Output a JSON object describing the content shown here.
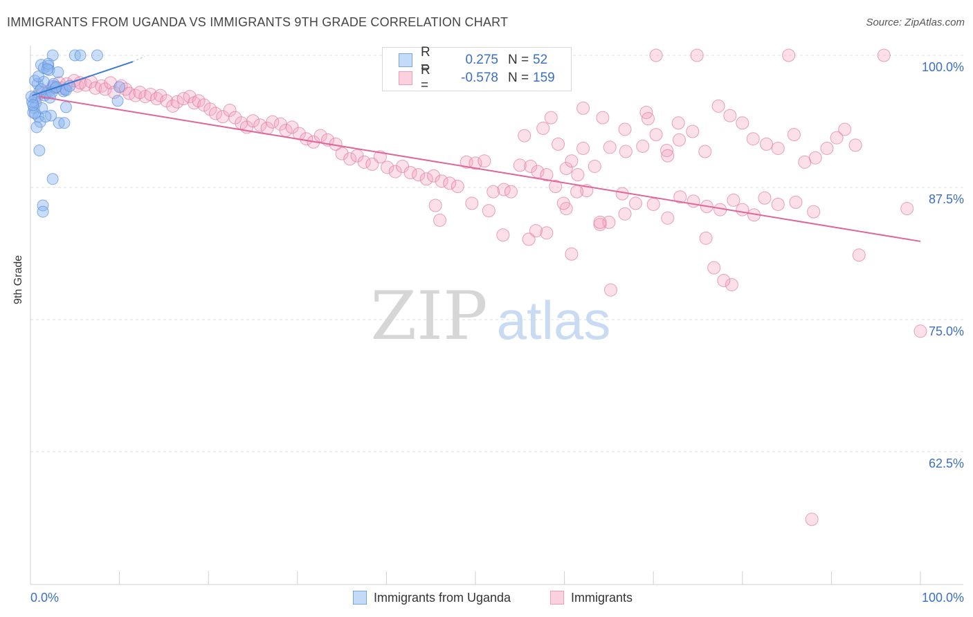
{
  "title": "IMMIGRANTS FROM UGANDA VS IMMIGRANTS 9TH GRADE CORRELATION CHART",
  "source": "Source: ZipAtlas.com",
  "watermark": {
    "zip": "ZIP",
    "atlas": "atlas"
  },
  "stats": [
    {
      "r_label": "R =",
      "r_value": "0.275",
      "n_label": "N =",
      "n_value": "52",
      "color": "#8ab4ef"
    },
    {
      "r_label": "R =",
      "r_value": "-0.578",
      "n_label": "N =",
      "n_value": "159",
      "color": "#f4a3bf"
    }
  ],
  "legend": [
    {
      "label": "Immigrants from Uganda",
      "color": "#8ab4ef"
    },
    {
      "label": "Immigrants",
      "color": "#f4a3bf"
    }
  ],
  "chart_data": {
    "type": "scatter",
    "title": "IMMIGRANTS FROM UGANDA VS IMMIGRANTS 9TH GRADE CORRELATION CHART",
    "xlabel": "",
    "ylabel": "9th Grade",
    "xlim": [
      0,
      100
    ],
    "ylim": [
      50,
      102
    ],
    "x_tick_labels": [
      "0.0%",
      "100.0%"
    ],
    "y_ticks": [
      62.5,
      75.0,
      87.5,
      100.0
    ],
    "y_tick_labels": [
      "62.5%",
      "75.0%",
      "87.5%",
      "100.0%"
    ],
    "grid": true,
    "series": [
      {
        "name": "Immigrants from Uganda",
        "color": "#8ab4ef",
        "stroke": "#5a8fd8",
        "trend": {
          "x": [
            0.2,
            11.5
          ],
          "y": [
            96.2,
            99.4
          ],
          "color": "#3a78d0"
        },
        "trend_dashed": {
          "x": [
            11.5,
            11.9
          ],
          "y": [
            99.4,
            99.5
          ]
        },
        "points": [
          [
            0.5,
            96.0
          ],
          [
            1.2,
            99.1
          ],
          [
            1.5,
            98.8
          ],
          [
            2.0,
            99.0
          ],
          [
            2.1,
            98.6
          ],
          [
            2.5,
            97.1
          ],
          [
            0.8,
            97.3
          ],
          [
            1.0,
            96.6
          ],
          [
            1.6,
            96.2
          ],
          [
            1.8,
            96.4
          ],
          [
            2.2,
            96.0
          ],
          [
            0.6,
            95.5
          ],
          [
            0.4,
            95.0
          ],
          [
            0.3,
            94.6
          ],
          [
            0.9,
            94.2
          ],
          [
            1.1,
            93.7
          ],
          [
            0.7,
            93.2
          ],
          [
            1.3,
            95.0
          ],
          [
            2.3,
            94.3
          ],
          [
            3.7,
            96.6
          ],
          [
            3.9,
            96.8
          ],
          [
            2.8,
            96.9
          ],
          [
            4.0,
            96.7
          ],
          [
            1.7,
            94.2
          ],
          [
            2.6,
            97.3
          ],
          [
            0.2,
            95.6
          ],
          [
            0.1,
            96.1
          ],
          [
            3.2,
            93.6
          ],
          [
            3.8,
            93.6
          ],
          [
            1.0,
            91.0
          ],
          [
            2.5,
            100.0
          ],
          [
            5.0,
            100.0
          ],
          [
            7.5,
            100.0
          ],
          [
            5.6,
            100.0
          ],
          [
            3.1,
            98.4
          ],
          [
            9.8,
            95.7
          ],
          [
            4.0,
            95.1
          ],
          [
            2.0,
            99.2
          ],
          [
            1.9,
            98.7
          ],
          [
            0.5,
            94.5
          ],
          [
            2.4,
            96.5
          ],
          [
            2.9,
            97.0
          ],
          [
            1.4,
            85.8
          ],
          [
            1.4,
            85.2
          ],
          [
            2.5,
            88.3
          ],
          [
            4.4,
            97.1
          ],
          [
            10.0,
            97.0
          ],
          [
            0.5,
            97.6
          ],
          [
            1.5,
            97.5
          ],
          [
            1.2,
            96.8
          ],
          [
            0.9,
            98.0
          ],
          [
            0.3,
            95.3
          ]
        ]
      },
      {
        "name": "Immigrants",
        "color": "#f4a3bf",
        "stroke": "#e07aa2",
        "trend": {
          "x": [
            1.0,
            100.0
          ],
          "y": [
            96.1,
            82.4
          ],
          "color": "#e0659a"
        },
        "points": [
          [
            0.7,
            96.1
          ],
          [
            1.4,
            96.5
          ],
          [
            2.0,
            96.6
          ],
          [
            2.7,
            97.0
          ],
          [
            3.2,
            97.4
          ],
          [
            3.5,
            96.9
          ],
          [
            4.1,
            97.3
          ],
          [
            4.9,
            97.6
          ],
          [
            5.3,
            97.1
          ],
          [
            5.6,
            97.4
          ],
          [
            6.2,
            97.2
          ],
          [
            6.8,
            97.5
          ],
          [
            7.3,
            96.9
          ],
          [
            8.0,
            97.1
          ],
          [
            8.4,
            96.8
          ],
          [
            9.0,
            97.4
          ],
          [
            9.4,
            96.5
          ],
          [
            10.2,
            97.1
          ],
          [
            10.7,
            96.8
          ],
          [
            11.1,
            96.4
          ],
          [
            11.8,
            96.2
          ],
          [
            12.3,
            96.5
          ],
          [
            12.9,
            96.1
          ],
          [
            13.5,
            96.3
          ],
          [
            14.2,
            95.9
          ],
          [
            14.6,
            96.2
          ],
          [
            15.3,
            95.7
          ],
          [
            16.0,
            95.2
          ],
          [
            16.5,
            95.6
          ],
          [
            17.2,
            95.9
          ],
          [
            17.9,
            96.1
          ],
          [
            18.4,
            95.5
          ],
          [
            18.9,
            95.7
          ],
          [
            19.5,
            95.3
          ],
          [
            20.2,
            94.9
          ],
          [
            20.8,
            94.5
          ],
          [
            21.6,
            94.2
          ],
          [
            22.4,
            94.8
          ],
          [
            23.0,
            94.1
          ],
          [
            23.7,
            93.6
          ],
          [
            24.3,
            93.2
          ],
          [
            25.0,
            93.8
          ],
          [
            25.8,
            93.4
          ],
          [
            26.6,
            93.1
          ],
          [
            27.2,
            93.7
          ],
          [
            28.1,
            93.5
          ],
          [
            28.7,
            92.9
          ],
          [
            29.4,
            93.2
          ],
          [
            30.2,
            92.6
          ],
          [
            31.0,
            92.1
          ],
          [
            31.8,
            91.8
          ],
          [
            32.6,
            92.4
          ],
          [
            33.4,
            92.0
          ],
          [
            34.3,
            91.6
          ],
          [
            35.0,
            90.7
          ],
          [
            35.9,
            90.2
          ],
          [
            36.7,
            90.5
          ],
          [
            37.5,
            89.9
          ],
          [
            38.4,
            89.7
          ],
          [
            39.3,
            90.4
          ],
          [
            40.1,
            89.4
          ],
          [
            41.0,
            89.0
          ],
          [
            41.8,
            89.5
          ],
          [
            42.7,
            88.9
          ],
          [
            43.6,
            88.7
          ],
          [
            44.5,
            88.3
          ],
          [
            45.3,
            88.6
          ],
          [
            46.2,
            88.1
          ],
          [
            47.1,
            87.9
          ],
          [
            48.0,
            87.6
          ],
          [
            49.0,
            89.9
          ],
          [
            50.0,
            89.8
          ],
          [
            51.0,
            90.0
          ],
          [
            52.0,
            87.1
          ],
          [
            53.2,
            87.3
          ],
          [
            54.0,
            87.1
          ],
          [
            55.0,
            89.6
          ],
          [
            56.2,
            89.5
          ],
          [
            57.0,
            89.0
          ],
          [
            58.0,
            88.7
          ],
          [
            59.0,
            87.6
          ],
          [
            60.2,
            89.3
          ],
          [
            61.5,
            88.7
          ],
          [
            62.5,
            87.2
          ],
          [
            64.0,
            84.0
          ],
          [
            65.0,
            84.2
          ],
          [
            66.5,
            86.9
          ],
          [
            68.0,
            86.0
          ],
          [
            70.0,
            85.9
          ],
          [
            71.6,
            84.6
          ],
          [
            73.0,
            86.6
          ],
          [
            74.5,
            86.2
          ],
          [
            76.0,
            85.7
          ],
          [
            77.5,
            85.4
          ],
          [
            79.0,
            86.3
          ],
          [
            80.0,
            85.4
          ],
          [
            81.3,
            84.9
          ],
          [
            82.5,
            86.5
          ],
          [
            84.0,
            85.9
          ],
          [
            86.0,
            86.1
          ],
          [
            88.0,
            85.2
          ],
          [
            45.5,
            85.8
          ],
          [
            46.0,
            84.4
          ],
          [
            49.6,
            86.0
          ],
          [
            51.5,
            85.3
          ],
          [
            53.1,
            83.0
          ],
          [
            55.5,
            92.4
          ],
          [
            57.6,
            93.1
          ],
          [
            59.3,
            91.6
          ],
          [
            60.8,
            90.0
          ],
          [
            62.1,
            91.2
          ],
          [
            63.4,
            89.5
          ],
          [
            65.1,
            91.3
          ],
          [
            66.9,
            90.9
          ],
          [
            68.8,
            91.4
          ],
          [
            70.3,
            92.5
          ],
          [
            71.5,
            91.0
          ],
          [
            72.9,
            92.0
          ],
          [
            74.4,
            92.8
          ],
          [
            75.8,
            90.9
          ],
          [
            77.3,
            95.2
          ],
          [
            78.6,
            94.3
          ],
          [
            80.0,
            93.6
          ],
          [
            81.2,
            92.1
          ],
          [
            82.7,
            91.6
          ],
          [
            84.0,
            91.2
          ],
          [
            85.8,
            92.5
          ],
          [
            87.0,
            89.9
          ],
          [
            88.2,
            90.3
          ],
          [
            89.5,
            91.2
          ],
          [
            90.6,
            92.2
          ],
          [
            91.5,
            93.0
          ],
          [
            92.7,
            91.5
          ],
          [
            62.1,
            95.0
          ],
          [
            64.3,
            94.1
          ],
          [
            66.8,
            93.0
          ],
          [
            69.2,
            94.6
          ],
          [
            72.8,
            93.6
          ],
          [
            58.5,
            94.1
          ],
          [
            56.0,
            82.6
          ],
          [
            58.0,
            83.2
          ],
          [
            56.8,
            83.4
          ],
          [
            60.8,
            81.2
          ],
          [
            60.2,
            85.5
          ],
          [
            64.0,
            84.2
          ],
          [
            75.9,
            82.7
          ],
          [
            59.9,
            86.0
          ],
          [
            61.4,
            87.1
          ],
          [
            66.8,
            85.0
          ],
          [
            71.6,
            90.5
          ],
          [
            69.4,
            94.0
          ],
          [
            76.8,
            79.9
          ],
          [
            78.8,
            78.3
          ],
          [
            77.9,
            78.7
          ],
          [
            93.1,
            81.1
          ],
          [
            98.5,
            85.5
          ],
          [
            100.0,
            73.9
          ],
          [
            87.8,
            56.1
          ],
          [
            65.2,
            77.8
          ],
          [
            70.3,
            100.0
          ],
          [
            74.9,
            100.0
          ],
          [
            85.2,
            100.0
          ],
          [
            95.9,
            100.0
          ]
        ]
      }
    ]
  }
}
